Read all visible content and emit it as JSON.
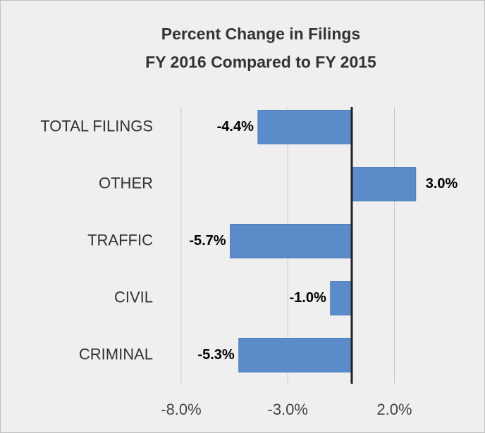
{
  "chart_data": {
    "type": "hbar",
    "title": "Percent Change in Filings",
    "subtitle": "FY 2016  Compared to FY 2015",
    "categories": [
      "TOTAL FILINGS",
      "OTHER",
      "TRAFFIC",
      "CIVIL",
      "CRIMINAL"
    ],
    "values": [
      -4.4,
      3.0,
      -5.7,
      -1.0,
      -5.3
    ],
    "value_labels": [
      "-4.4%",
      "3.0%",
      "-5.7%",
      "-1.0%",
      "-5.3%"
    ],
    "color": "#5b8bc8",
    "xlim": [
      -8,
      4
    ],
    "xticks": [
      {
        "value": -8,
        "label": "-8.0%"
      },
      {
        "value": -3,
        "label": "-3.0%"
      },
      {
        "value": 2,
        "label": "2.0%"
      }
    ],
    "grid": true
  }
}
